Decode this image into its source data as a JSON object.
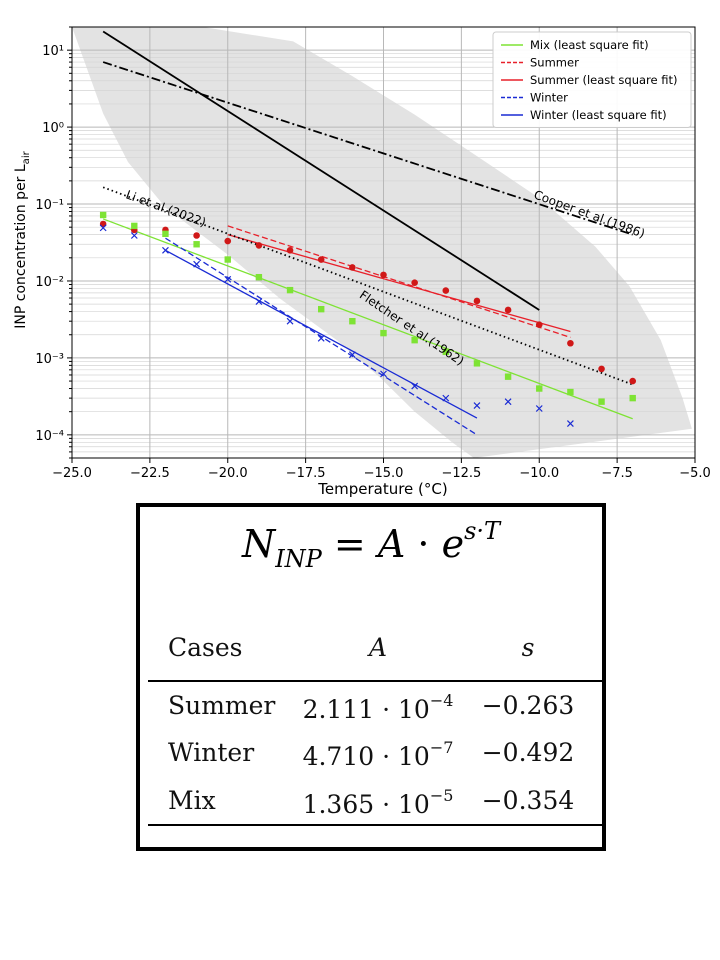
{
  "chart_data": {
    "type": "scatter",
    "xlabel": "Temperature (°C)",
    "ylabel": "INP concentration per L",
    "ylabel_subscript": "air",
    "xlim": [
      -25.0,
      -5.0
    ],
    "ylim": [
      5e-05,
      20
    ],
    "yscale": "log",
    "grid": true,
    "legend_position": "upper right",
    "x_ticks": [
      -25.0,
      -22.5,
      -20.0,
      -17.5,
      -15.0,
      -12.5,
      -10.0,
      -7.5,
      -5.0
    ],
    "x_tick_labels": [
      "−25.0",
      "−22.5",
      "−20.0",
      "−17.5",
      "−15.0",
      "−12.5",
      "−10.0",
      "−7.5",
      "−5.0"
    ],
    "y_ticks": [
      0.0001,
      0.001,
      0.01,
      0.1,
      1,
      10
    ],
    "y_tick_labels": [
      "10⁻⁴",
      "10⁻³",
      "10⁻²",
      "10⁻¹",
      "10⁰",
      "10¹"
    ],
    "band": {
      "color": "#e3e3e3",
      "upper": [
        [
          -22.5,
          20
        ],
        [
          -20.8,
          20
        ],
        [
          -17.9,
          13.0
        ],
        [
          -16,
          4.6
        ],
        [
          -14,
          1.45
        ],
        [
          -12,
          0.42
        ],
        [
          -10,
          0.12
        ],
        [
          -8.2,
          0.028
        ],
        [
          -7.1,
          0.0085
        ],
        [
          -6.1,
          0.0017
        ],
        [
          -5.4,
          0.0003
        ],
        [
          -5.1,
          0.00012
        ]
      ],
      "lower": [
        [
          -25.0,
          20
        ],
        [
          -24.0,
          1.5
        ],
        [
          -23.2,
          0.35
        ],
        [
          -22,
          0.09
        ],
        [
          -20,
          0.022
        ],
        [
          -18.3,
          0.0058
        ],
        [
          -16.5,
          0.0017
        ],
        [
          -15.1,
          0.00055
        ],
        [
          -14,
          0.0002
        ],
        [
          -12.8,
          8e-05
        ],
        [
          -12.1,
          5e-05
        ]
      ]
    },
    "series": [
      {
        "name": "Mix (least square fit)",
        "style": "solid",
        "color": "#7ee334",
        "points": [
          [
            -24,
            0.064
          ],
          [
            -7,
            0.000162
          ]
        ]
      },
      {
        "name": "Summer",
        "style": "dashed",
        "color": "#e8202a",
        "points": [
          [
            -20,
            0.052
          ],
          [
            -9,
            0.00185
          ]
        ]
      },
      {
        "name": "Summer (least square fit)",
        "style": "solid",
        "color": "#e8202a",
        "points": [
          [
            -20,
            0.04
          ],
          [
            -9,
            0.0022
          ]
        ]
      },
      {
        "name": "Winter",
        "style": "dashed",
        "color": "#1a2bd4",
        "points": [
          [
            -22,
            0.036
          ],
          [
            -12,
            0.0001
          ]
        ]
      },
      {
        "name": "Winter (least square fit)",
        "style": "solid",
        "color": "#1a2bd4",
        "points": [
          [
            -22,
            0.025
          ],
          [
            -12,
            0.000165
          ]
        ]
      },
      {
        "style": "solid",
        "color": "#000000",
        "points": [
          [
            -24,
            17.5
          ],
          [
            -10,
            0.0042
          ]
        ]
      },
      {
        "style": "dashdot",
        "color": "#000000",
        "points": [
          [
            -24,
            7.0
          ],
          [
            -7,
            0.04
          ]
        ]
      },
      {
        "style": "dotted",
        "color": "#000000",
        "points": [
          [
            -24,
            0.165
          ],
          [
            -7,
            0.00045
          ]
        ]
      }
    ],
    "scatter_series": [
      {
        "marker": "circle",
        "color": "#d01818",
        "points": [
          [
            -24,
            0.055
          ],
          [
            -23,
            0.046
          ],
          [
            -22,
            0.046
          ],
          [
            -21,
            0.039
          ],
          [
            -20,
            0.033
          ],
          [
            -19,
            0.029
          ],
          [
            -18,
            0.025
          ],
          [
            -17,
            0.019
          ],
          [
            -16,
            0.015
          ],
          [
            -15,
            0.012
          ],
          [
            -14,
            0.0095
          ],
          [
            -13,
            0.0075
          ],
          [
            -12,
            0.0055
          ],
          [
            -11,
            0.0042
          ],
          [
            -10,
            0.0027
          ],
          [
            -9,
            0.00155
          ],
          [
            -8,
            0.00072
          ],
          [
            -7,
            0.0005
          ]
        ]
      },
      {
        "marker": "square",
        "color": "#7ee334",
        "points": [
          [
            -24,
            0.072
          ],
          [
            -23,
            0.052
          ],
          [
            -22,
            0.041
          ],
          [
            -21,
            0.03
          ],
          [
            -20,
            0.019
          ],
          [
            -19,
            0.0112
          ],
          [
            -18,
            0.0076
          ],
          [
            -17,
            0.0043
          ],
          [
            -16,
            0.003
          ],
          [
            -15,
            0.0021
          ],
          [
            -14,
            0.0017
          ],
          [
            -13,
            0.0012
          ],
          [
            -12,
            0.00085
          ],
          [
            -11,
            0.00057
          ],
          [
            -10,
            0.0004
          ],
          [
            -9,
            0.00036
          ],
          [
            -8,
            0.00027
          ],
          [
            -7,
            0.0003
          ]
        ]
      },
      {
        "marker": "x",
        "color": "#1a2bd4",
        "points": [
          [
            -24,
            0.049
          ],
          [
            -23,
            0.039
          ],
          [
            -22,
            0.025
          ],
          [
            -21,
            0.0165
          ],
          [
            -20,
            0.0105
          ],
          [
            -19,
            0.0054
          ],
          [
            -18,
            0.003
          ],
          [
            -17,
            0.0018
          ],
          [
            -16,
            0.0011
          ],
          [
            -15,
            0.00062
          ],
          [
            -14,
            0.00043
          ],
          [
            -13,
            0.0003
          ],
          [
            -12,
            0.00024
          ],
          [
            -11,
            0.00027
          ],
          [
            -10,
            0.00022
          ],
          [
            -9,
            0.00014
          ]
        ]
      }
    ],
    "annotations": [
      {
        "text": "Li et al.(2022)",
        "x": -23.3,
        "y": 0.12,
        "angle": 20
      },
      {
        "text": "Fletcher et al.(1962)",
        "x": -15.8,
        "y": 0.0062,
        "angle": 34
      },
      {
        "text": "Cooper et al.(1986)",
        "x": -10.2,
        "y": 0.12,
        "angle": 20
      }
    ]
  },
  "formula": {
    "lhs": "N",
    "lhs_sub": "INP",
    "eq": "=",
    "a": "A",
    "dot": "·",
    "base": "e",
    "exp": "s·T"
  },
  "table": {
    "headers": [
      "Cases",
      "A",
      "s"
    ],
    "rows": [
      {
        "case": "Summer",
        "mant": "2.111",
        "mul": "· 10",
        "exp": "−4",
        "s": "−0.263"
      },
      {
        "case": "Winter",
        "mant": "4.710",
        "mul": "· 10",
        "exp": "−7",
        "s": "−0.492"
      },
      {
        "case": "Mix",
        "mant": "1.365",
        "mul": "· 10",
        "exp": "−5",
        "s": "−0.354"
      }
    ]
  }
}
